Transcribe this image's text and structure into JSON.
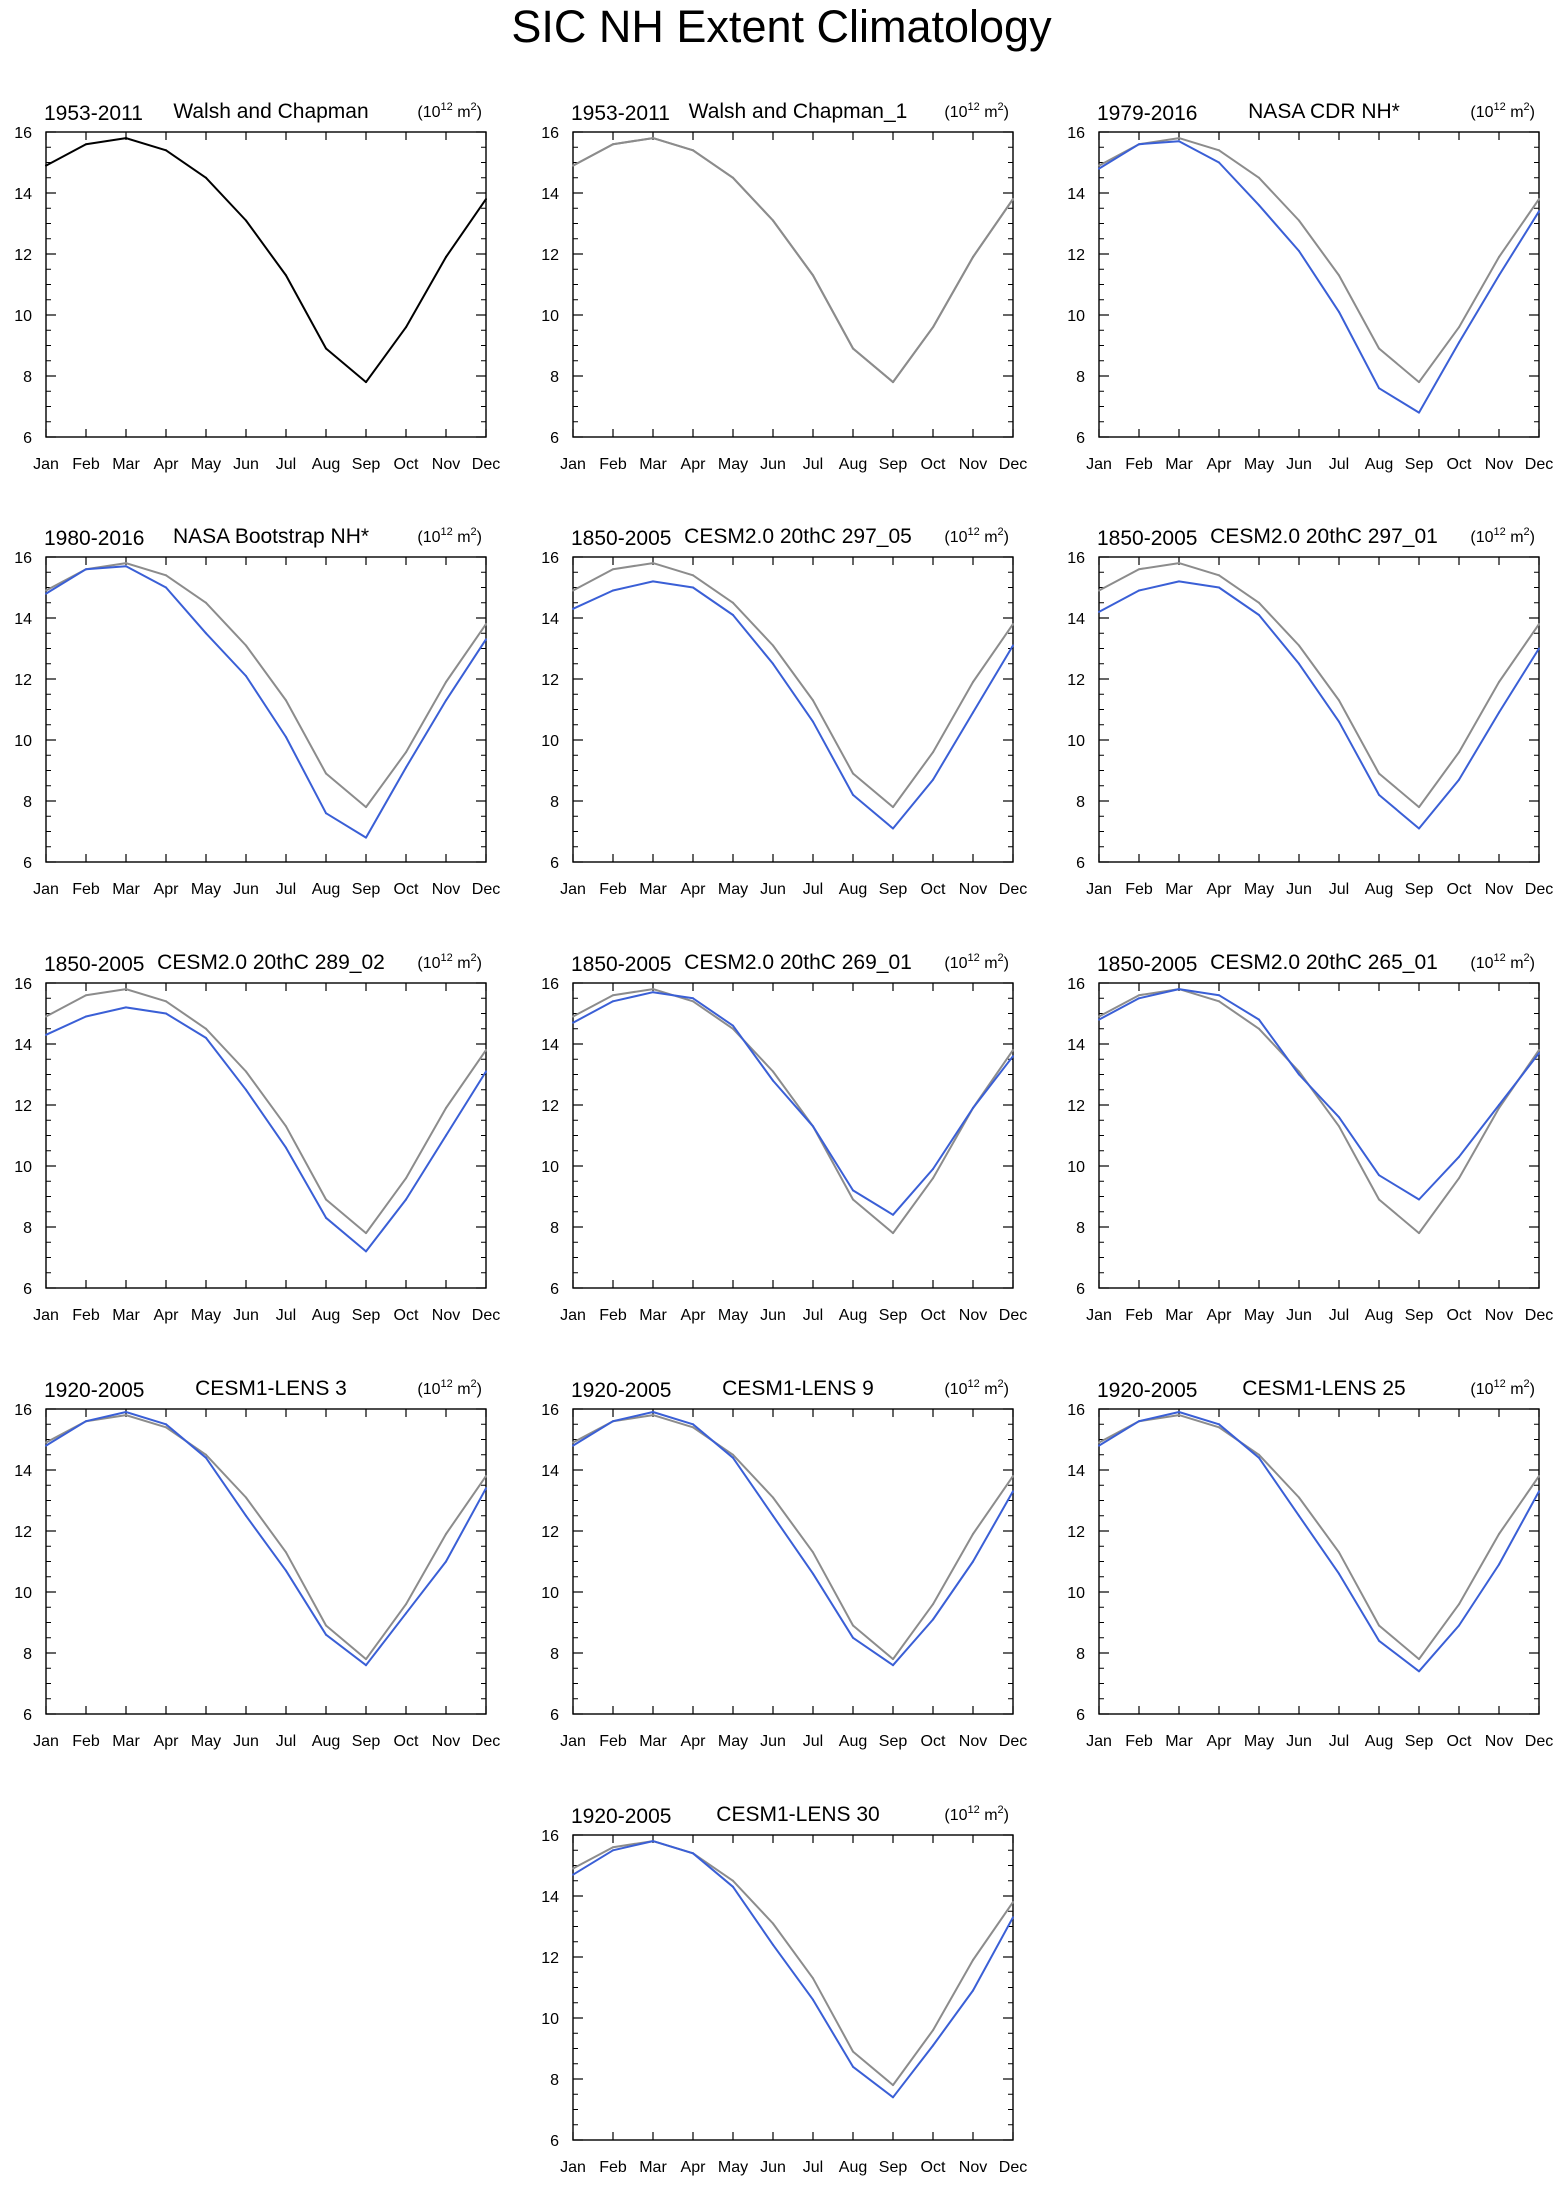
{
  "title": "SIC NH Extent Climatology",
  "colors": {
    "reference": "#8c8c8c",
    "model": "#3a5fd6",
    "single": "#000000",
    "axis": "#000000"
  },
  "chart_data": [
    {
      "type": "line",
      "period": "1953-2011",
      "title": "Walsh and Chapman",
      "units": "(10",
      "units_exp": "12",
      "units_tail": " m",
      "units_exp2": "2",
      "units_close": ")",
      "categories": [
        "Jan",
        "Feb",
        "Mar",
        "Apr",
        "May",
        "Jun",
        "Jul",
        "Aug",
        "Sep",
        "Oct",
        "Nov",
        "Dec"
      ],
      "ylim": [
        6,
        16
      ],
      "yticks": [
        6,
        8,
        10,
        12,
        14,
        16
      ],
      "grid": false,
      "series": [
        {
          "role": "single",
          "values": [
            14.9,
            15.6,
            15.8,
            15.4,
            14.5,
            13.1,
            11.3,
            8.9,
            7.8,
            9.6,
            11.9,
            13.8
          ]
        }
      ]
    },
    {
      "type": "line",
      "period": "1953-2011",
      "title": "Walsh and Chapman_1",
      "units": "(10",
      "units_exp": "12",
      "units_tail": " m",
      "units_exp2": "2",
      "units_close": ")",
      "categories": [
        "Jan",
        "Feb",
        "Mar",
        "Apr",
        "May",
        "Jun",
        "Jul",
        "Aug",
        "Sep",
        "Oct",
        "Nov",
        "Dec"
      ],
      "ylim": [
        6,
        16
      ],
      "yticks": [
        6,
        8,
        10,
        12,
        14,
        16
      ],
      "grid": false,
      "series": [
        {
          "role": "reference",
          "values": [
            14.9,
            15.6,
            15.8,
            15.4,
            14.5,
            13.1,
            11.3,
            8.9,
            7.8,
            9.6,
            11.9,
            13.8
          ]
        },
        {
          "role": "reference",
          "values": [
            14.9,
            15.6,
            15.8,
            15.4,
            14.5,
            13.1,
            11.3,
            8.9,
            7.8,
            9.6,
            11.9,
            13.8
          ]
        }
      ]
    },
    {
      "type": "line",
      "period": "1979-2016",
      "title": "NASA CDR NH*",
      "units": "(10",
      "units_exp": "12",
      "units_tail": " m",
      "units_exp2": "2",
      "units_close": ")",
      "categories": [
        "Jan",
        "Feb",
        "Mar",
        "Apr",
        "May",
        "Jun",
        "Jul",
        "Aug",
        "Sep",
        "Oct",
        "Nov",
        "Dec"
      ],
      "ylim": [
        6,
        16
      ],
      "yticks": [
        6,
        8,
        10,
        12,
        14,
        16
      ],
      "grid": false,
      "series": [
        {
          "role": "reference",
          "values": [
            14.9,
            15.6,
            15.8,
            15.4,
            14.5,
            13.1,
            11.3,
            8.9,
            7.8,
            9.6,
            11.9,
            13.8
          ]
        },
        {
          "role": "model",
          "values": [
            14.8,
            15.6,
            15.7,
            15.0,
            13.6,
            12.1,
            10.1,
            7.6,
            6.8,
            9.1,
            11.3,
            13.4
          ]
        }
      ]
    },
    {
      "type": "line",
      "period": "1980-2016",
      "title": "NASA Bootstrap NH*",
      "units": "(10",
      "units_exp": "12",
      "units_tail": " m",
      "units_exp2": "2",
      "units_close": ")",
      "categories": [
        "Jan",
        "Feb",
        "Mar",
        "Apr",
        "May",
        "Jun",
        "Jul",
        "Aug",
        "Sep",
        "Oct",
        "Nov",
        "Dec"
      ],
      "ylim": [
        6,
        16
      ],
      "yticks": [
        6,
        8,
        10,
        12,
        14,
        16
      ],
      "grid": false,
      "series": [
        {
          "role": "reference",
          "values": [
            14.9,
            15.6,
            15.8,
            15.4,
            14.5,
            13.1,
            11.3,
            8.9,
            7.8,
            9.6,
            11.9,
            13.8
          ]
        },
        {
          "role": "model",
          "values": [
            14.8,
            15.6,
            15.7,
            15.0,
            13.5,
            12.1,
            10.1,
            7.6,
            6.8,
            9.1,
            11.3,
            13.3
          ]
        }
      ]
    },
    {
      "type": "line",
      "period": "1850-2005",
      "title": "CESM2.0 20thC 297_05",
      "units": "(10",
      "units_exp": "12",
      "units_tail": " m",
      "units_exp2": "2",
      "units_close": ")",
      "categories": [
        "Jan",
        "Feb",
        "Mar",
        "Apr",
        "May",
        "Jun",
        "Jul",
        "Aug",
        "Sep",
        "Oct",
        "Nov",
        "Dec"
      ],
      "ylim": [
        6,
        16
      ],
      "yticks": [
        6,
        8,
        10,
        12,
        14,
        16
      ],
      "grid": false,
      "series": [
        {
          "role": "reference",
          "values": [
            14.9,
            15.6,
            15.8,
            15.4,
            14.5,
            13.1,
            11.3,
            8.9,
            7.8,
            9.6,
            11.9,
            13.8
          ]
        },
        {
          "role": "model",
          "values": [
            14.3,
            14.9,
            15.2,
            15.0,
            14.1,
            12.5,
            10.6,
            8.2,
            7.1,
            8.7,
            10.9,
            13.1
          ]
        }
      ]
    },
    {
      "type": "line",
      "period": "1850-2005",
      "title": "CESM2.0 20thC 297_01",
      "units": "(10",
      "units_exp": "12",
      "units_tail": " m",
      "units_exp2": "2",
      "units_close": ")",
      "categories": [
        "Jan",
        "Feb",
        "Mar",
        "Apr",
        "May",
        "Jun",
        "Jul",
        "Aug",
        "Sep",
        "Oct",
        "Nov",
        "Dec"
      ],
      "ylim": [
        6,
        16
      ],
      "yticks": [
        6,
        8,
        10,
        12,
        14,
        16
      ],
      "grid": false,
      "series": [
        {
          "role": "reference",
          "values": [
            14.9,
            15.6,
            15.8,
            15.4,
            14.5,
            13.1,
            11.3,
            8.9,
            7.8,
            9.6,
            11.9,
            13.8
          ]
        },
        {
          "role": "model",
          "values": [
            14.2,
            14.9,
            15.2,
            15.0,
            14.1,
            12.5,
            10.6,
            8.2,
            7.1,
            8.7,
            10.9,
            13.0
          ]
        }
      ]
    },
    {
      "type": "line",
      "period": "1850-2005",
      "title": "CESM2.0 20thC 289_02",
      "units": "(10",
      "units_exp": "12",
      "units_tail": " m",
      "units_exp2": "2",
      "units_close": ")",
      "categories": [
        "Jan",
        "Feb",
        "Mar",
        "Apr",
        "May",
        "Jun",
        "Jul",
        "Aug",
        "Sep",
        "Oct",
        "Nov",
        "Dec"
      ],
      "ylim": [
        6,
        16
      ],
      "yticks": [
        6,
        8,
        10,
        12,
        14,
        16
      ],
      "grid": false,
      "series": [
        {
          "role": "reference",
          "values": [
            14.9,
            15.6,
            15.8,
            15.4,
            14.5,
            13.1,
            11.3,
            8.9,
            7.8,
            9.6,
            11.9,
            13.8
          ]
        },
        {
          "role": "model",
          "values": [
            14.3,
            14.9,
            15.2,
            15.0,
            14.2,
            12.5,
            10.6,
            8.3,
            7.2,
            8.9,
            11.0,
            13.1
          ]
        }
      ]
    },
    {
      "type": "line",
      "period": "1850-2005",
      "title": "CESM2.0 20thC 269_01",
      "units": "(10",
      "units_exp": "12",
      "units_tail": " m",
      "units_exp2": "2",
      "units_close": ")",
      "categories": [
        "Jan",
        "Feb",
        "Mar",
        "Apr",
        "May",
        "Jun",
        "Jul",
        "Aug",
        "Sep",
        "Oct",
        "Nov",
        "Dec"
      ],
      "ylim": [
        6,
        16
      ],
      "yticks": [
        6,
        8,
        10,
        12,
        14,
        16
      ],
      "grid": false,
      "series": [
        {
          "role": "reference",
          "values": [
            14.9,
            15.6,
            15.8,
            15.4,
            14.5,
            13.1,
            11.3,
            8.9,
            7.8,
            9.6,
            11.9,
            13.8
          ]
        },
        {
          "role": "model",
          "values": [
            14.7,
            15.4,
            15.7,
            15.5,
            14.6,
            12.8,
            11.3,
            9.2,
            8.4,
            9.9,
            11.9,
            13.6
          ]
        }
      ]
    },
    {
      "type": "line",
      "period": "1850-2005",
      "title": "CESM2.0 20thC 265_01",
      "units": "(10",
      "units_exp": "12",
      "units_tail": " m",
      "units_exp2": "2",
      "units_close": ")",
      "categories": [
        "Jan",
        "Feb",
        "Mar",
        "Apr",
        "May",
        "Jun",
        "Jul",
        "Aug",
        "Sep",
        "Oct",
        "Nov",
        "Dec"
      ],
      "ylim": [
        6,
        16
      ],
      "yticks": [
        6,
        8,
        10,
        12,
        14,
        16
      ],
      "grid": false,
      "series": [
        {
          "role": "reference",
          "values": [
            14.9,
            15.6,
            15.8,
            15.4,
            14.5,
            13.1,
            11.3,
            8.9,
            7.8,
            9.6,
            11.9,
            13.8
          ]
        },
        {
          "role": "model",
          "values": [
            14.8,
            15.5,
            15.8,
            15.6,
            14.8,
            13.0,
            11.6,
            9.7,
            8.9,
            10.3,
            12.0,
            13.7
          ]
        }
      ]
    },
    {
      "type": "line",
      "period": "1920-2005",
      "title": "CESM1-LENS 3",
      "units": "(10",
      "units_exp": "12",
      "units_tail": " m",
      "units_exp2": "2",
      "units_close": ")",
      "categories": [
        "Jan",
        "Feb",
        "Mar",
        "Apr",
        "May",
        "Jun",
        "Jul",
        "Aug",
        "Sep",
        "Oct",
        "Nov",
        "Dec"
      ],
      "ylim": [
        6,
        16
      ],
      "yticks": [
        6,
        8,
        10,
        12,
        14,
        16
      ],
      "grid": false,
      "series": [
        {
          "role": "reference",
          "values": [
            14.9,
            15.6,
            15.8,
            15.4,
            14.5,
            13.1,
            11.3,
            8.9,
            7.8,
            9.6,
            11.9,
            13.8
          ]
        },
        {
          "role": "model",
          "values": [
            14.8,
            15.6,
            15.9,
            15.5,
            14.4,
            12.5,
            10.7,
            8.6,
            7.6,
            9.3,
            11.0,
            13.4
          ]
        }
      ]
    },
    {
      "type": "line",
      "period": "1920-2005",
      "title": "CESM1-LENS 9",
      "units": "(10",
      "units_exp": "12",
      "units_tail": " m",
      "units_exp2": "2",
      "units_close": ")",
      "categories": [
        "Jan",
        "Feb",
        "Mar",
        "Apr",
        "May",
        "Jun",
        "Jul",
        "Aug",
        "Sep",
        "Oct",
        "Nov",
        "Dec"
      ],
      "ylim": [
        6,
        16
      ],
      "yticks": [
        6,
        8,
        10,
        12,
        14,
        16
      ],
      "grid": false,
      "series": [
        {
          "role": "reference",
          "values": [
            14.9,
            15.6,
            15.8,
            15.4,
            14.5,
            13.1,
            11.3,
            8.9,
            7.8,
            9.6,
            11.9,
            13.8
          ]
        },
        {
          "role": "model",
          "values": [
            14.8,
            15.6,
            15.9,
            15.5,
            14.4,
            12.5,
            10.6,
            8.5,
            7.6,
            9.1,
            11.0,
            13.3
          ]
        }
      ]
    },
    {
      "type": "line",
      "period": "1920-2005",
      "title": "CESM1-LENS 25",
      "units": "(10",
      "units_exp": "12",
      "units_tail": " m",
      "units_exp2": "2",
      "units_close": ")",
      "categories": [
        "Jan",
        "Feb",
        "Mar",
        "Apr",
        "May",
        "Jun",
        "Jul",
        "Aug",
        "Sep",
        "Oct",
        "Nov",
        "Dec"
      ],
      "ylim": [
        6,
        16
      ],
      "yticks": [
        6,
        8,
        10,
        12,
        14,
        16
      ],
      "grid": false,
      "series": [
        {
          "role": "reference",
          "values": [
            14.9,
            15.6,
            15.8,
            15.4,
            14.5,
            13.1,
            11.3,
            8.9,
            7.8,
            9.6,
            11.9,
            13.8
          ]
        },
        {
          "role": "model",
          "values": [
            14.8,
            15.6,
            15.9,
            15.5,
            14.4,
            12.5,
            10.6,
            8.4,
            7.4,
            8.9,
            10.9,
            13.3
          ]
        }
      ]
    },
    {
      "type": "line",
      "period": "1920-2005",
      "title": "CESM1-LENS 30",
      "units": "(10",
      "units_exp": "12",
      "units_tail": " m",
      "units_exp2": "2",
      "units_close": ")",
      "categories": [
        "Jan",
        "Feb",
        "Mar",
        "Apr",
        "May",
        "Jun",
        "Jul",
        "Aug",
        "Sep",
        "Oct",
        "Nov",
        "Dec"
      ],
      "ylim": [
        6,
        16
      ],
      "yticks": [
        6,
        8,
        10,
        12,
        14,
        16
      ],
      "grid": false,
      "series": [
        {
          "role": "reference",
          "values": [
            14.9,
            15.6,
            15.8,
            15.4,
            14.5,
            13.1,
            11.3,
            8.9,
            7.8,
            9.6,
            11.9,
            13.8
          ]
        },
        {
          "role": "model",
          "values": [
            14.7,
            15.5,
            15.8,
            15.4,
            14.3,
            12.4,
            10.6,
            8.4,
            7.4,
            9.1,
            10.9,
            13.3
          ]
        }
      ]
    }
  ]
}
